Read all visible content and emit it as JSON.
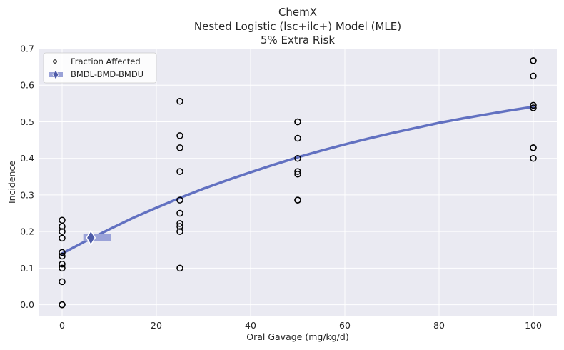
{
  "chart_data": {
    "type": "scatter",
    "title_lines": [
      "ChemX",
      "Nested Logistic (lsc+ilc+) Model (MLE)",
      "5% Extra Risk"
    ],
    "xlabel": "Oral Gavage (mg/kg/d)",
    "ylabel": "Incidence",
    "xlim": [
      -5,
      105
    ],
    "ylim": [
      -0.03,
      0.7
    ],
    "xticks": [
      0,
      20,
      40,
      60,
      80,
      100
    ],
    "yticks": [
      0.0,
      0.1,
      0.2,
      0.3,
      0.4,
      0.5,
      0.6,
      0.7
    ],
    "xtick_labels": [
      "0",
      "20",
      "40",
      "60",
      "80",
      "100"
    ],
    "ytick_labels": [
      "0.0",
      "0.1",
      "0.2",
      "0.3",
      "0.4",
      "0.5",
      "0.6",
      "0.7"
    ],
    "grid": true,
    "legend_position": "top-left",
    "legend_entries": [
      "Fraction Affected",
      "BMDL-BMD-BMDU"
    ],
    "points": {
      "name": "Fraction Affected",
      "x": [
        0,
        0,
        0,
        0,
        0,
        0,
        0,
        0,
        0,
        0,
        0,
        25,
        25,
        25,
        25,
        25,
        25,
        25,
        25,
        25,
        25,
        50,
        50,
        50,
        50,
        50,
        50,
        50,
        50,
        100,
        100,
        100,
        100,
        100,
        100,
        100,
        100
      ],
      "y": [
        0.231,
        0.214,
        0.2,
        0.182,
        0.143,
        0.133,
        0.111,
        0.1,
        0.063,
        0.0,
        0.0,
        0.556,
        0.462,
        0.429,
        0.364,
        0.286,
        0.25,
        0.222,
        0.214,
        0.2,
        0.1,
        0.5,
        0.5,
        0.455,
        0.4,
        0.364,
        0.357,
        0.286,
        0.286,
        0.667,
        0.667,
        0.625,
        0.545,
        0.538,
        0.429,
        0.429,
        0.4
      ]
    },
    "model_curve": {
      "x": [
        0,
        5,
        10,
        15,
        20,
        25,
        30,
        35,
        40,
        45,
        50,
        55,
        60,
        65,
        70,
        75,
        80,
        85,
        90,
        95,
        100
      ],
      "y": [
        0.14,
        0.174,
        0.206,
        0.237,
        0.265,
        0.292,
        0.317,
        0.34,
        0.362,
        0.383,
        0.403,
        0.421,
        0.438,
        0.454,
        0.469,
        0.483,
        0.497,
        0.509,
        0.52,
        0.531,
        0.541
      ]
    },
    "bmd_marker": {
      "bmdl": 4.5,
      "bmd": 6.1,
      "bmdu": 8.9,
      "y": 0.183
    },
    "colors": {
      "background": "#eaeaf2",
      "grid": "#ffffff",
      "curve": "#6271c1",
      "bmd_range": "#9aa2d8",
      "bmd_marker": "#4d5aa8",
      "points": "#000000"
    }
  }
}
